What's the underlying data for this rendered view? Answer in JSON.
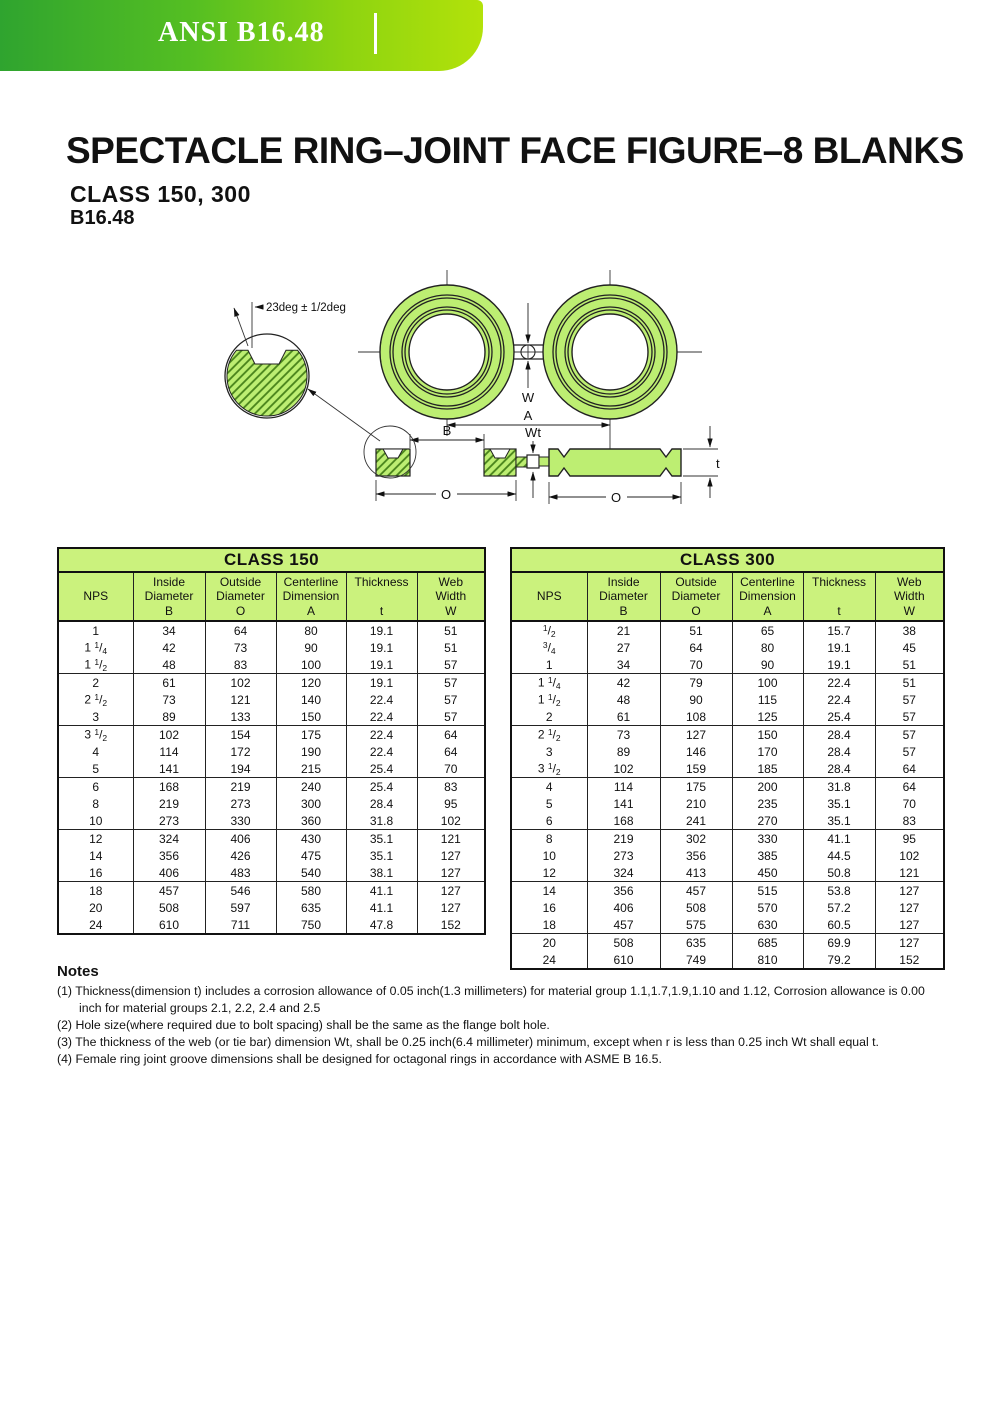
{
  "banner": {
    "label": "ANSI B16.48"
  },
  "heading": {
    "title": "SPECTACLE RING–JOINT FACE FIGURE–8 BLANKS",
    "class_line": "CLASS 150, 300",
    "standard": "B16.48"
  },
  "diagram": {
    "angle_label": "23deg ± 1/2deg",
    "dim_w": "W",
    "dim_a": "A",
    "dim_b": "B",
    "dim_wt": "Wt",
    "dim_o_left": "O",
    "dim_o_right": "O",
    "dim_t": "t"
  },
  "tables": [
    {
      "title": "CLASS 150",
      "columns": [
        "NPS",
        "Inside\nDiameter\nB",
        "Outside\nDiameter\nO",
        "Centerline\nDimension\nA",
        "Thickness\n\nt",
        "Web\nWidth\nW"
      ],
      "group_size": 3,
      "rows": [
        [
          "1",
          "34",
          "64",
          "80",
          "19.1",
          "51"
        ],
        [
          "1 1/4",
          "42",
          "73",
          "90",
          "19.1",
          "51"
        ],
        [
          "1 1/2",
          "48",
          "83",
          "100",
          "19.1",
          "57"
        ],
        [
          "2",
          "61",
          "102",
          "120",
          "19.1",
          "57"
        ],
        [
          "2 1/2",
          "73",
          "121",
          "140",
          "22.4",
          "57"
        ],
        [
          "3",
          "89",
          "133",
          "150",
          "22.4",
          "57"
        ],
        [
          "3 1/2",
          "102",
          "154",
          "175",
          "22.4",
          "64"
        ],
        [
          "4",
          "114",
          "172",
          "190",
          "22.4",
          "64"
        ],
        [
          "5",
          "141",
          "194",
          "215",
          "25.4",
          "70"
        ],
        [
          "6",
          "168",
          "219",
          "240",
          "25.4",
          "83"
        ],
        [
          "8",
          "219",
          "273",
          "300",
          "28.4",
          "95"
        ],
        [
          "10",
          "273",
          "330",
          "360",
          "31.8",
          "102"
        ],
        [
          "12",
          "324",
          "406",
          "430",
          "35.1",
          "121"
        ],
        [
          "14",
          "356",
          "426",
          "475",
          "35.1",
          "127"
        ],
        [
          "16",
          "406",
          "483",
          "540",
          "38.1",
          "127"
        ],
        [
          "18",
          "457",
          "546",
          "580",
          "41.1",
          "127"
        ],
        [
          "20",
          "508",
          "597",
          "635",
          "41.1",
          "127"
        ],
        [
          "24",
          "610",
          "711",
          "750",
          "47.8",
          "152"
        ]
      ]
    },
    {
      "title": "CLASS 300",
      "columns": [
        "NPS",
        "Inside\nDiameter\nB",
        "Outside\nDiameter\nO",
        "Centerline\nDimension\nA",
        "Thickness\n\nt",
        "Web\nWidth\nW"
      ],
      "group_size": 3,
      "rows": [
        [
          "1/2",
          "21",
          "51",
          "65",
          "15.7",
          "38"
        ],
        [
          "3/4",
          "27",
          "64",
          "80",
          "19.1",
          "45"
        ],
        [
          "1",
          "34",
          "70",
          "90",
          "19.1",
          "51"
        ],
        [
          "1 1/4",
          "42",
          "79",
          "100",
          "22.4",
          "51"
        ],
        [
          "1 1/2",
          "48",
          "90",
          "115",
          "22.4",
          "57"
        ],
        [
          "2",
          "61",
          "108",
          "125",
          "25.4",
          "57"
        ],
        [
          "2 1/2",
          "73",
          "127",
          "150",
          "28.4",
          "57"
        ],
        [
          "3",
          "89",
          "146",
          "170",
          "28.4",
          "57"
        ],
        [
          "3 1/2",
          "102",
          "159",
          "185",
          "28.4",
          "64"
        ],
        [
          "4",
          "114",
          "175",
          "200",
          "31.8",
          "64"
        ],
        [
          "5",
          "141",
          "210",
          "235",
          "35.1",
          "70"
        ],
        [
          "6",
          "168",
          "241",
          "270",
          "35.1",
          "83"
        ],
        [
          "8",
          "219",
          "302",
          "330",
          "41.1",
          "95"
        ],
        [
          "10",
          "273",
          "356",
          "385",
          "44.5",
          "102"
        ],
        [
          "12",
          "324",
          "413",
          "450",
          "50.8",
          "121"
        ],
        [
          "14",
          "356",
          "457",
          "515",
          "53.8",
          "127"
        ],
        [
          "16",
          "406",
          "508",
          "570",
          "57.2",
          "127"
        ],
        [
          "18",
          "457",
          "575",
          "630",
          "60.5",
          "127"
        ],
        [
          "20",
          "508",
          "635",
          "685",
          "69.9",
          "127"
        ],
        [
          "24",
          "610",
          "749",
          "810",
          "79.2",
          "152"
        ]
      ]
    }
  ],
  "notes": {
    "heading": "Notes",
    "items": [
      "(1) Thickness(dimension t) includes a corrosion allowance of 0.05 inch(1.3 millimeters) for material group 1.1,1.7,1.9,1.10 and 1.12, Corrosion allowance is 0.00 inch for material groups 2.1, 2.2, 2.4 and 2.5",
      "(2) Hole size(where required due to bolt spacing) shall be the same as the flange bolt hole.",
      "(3) The thickness of the web (or tie bar) dimension Wt, shall be 0.25 inch(6.4 millimeter) minimum, except when r is less than 0.25 inch Wt shall equal t.",
      "(4) Female ring joint groove dimensions shall be designed for octagonal rings in accordance with ASME B 16.5."
    ]
  },
  "colors": {
    "banner_green_dark": "#2fa42f",
    "banner_green_light": "#b3e20a",
    "table_green": "#cbf27d",
    "diagram_green": "#bdee72",
    "border": "#1a1a1a"
  }
}
